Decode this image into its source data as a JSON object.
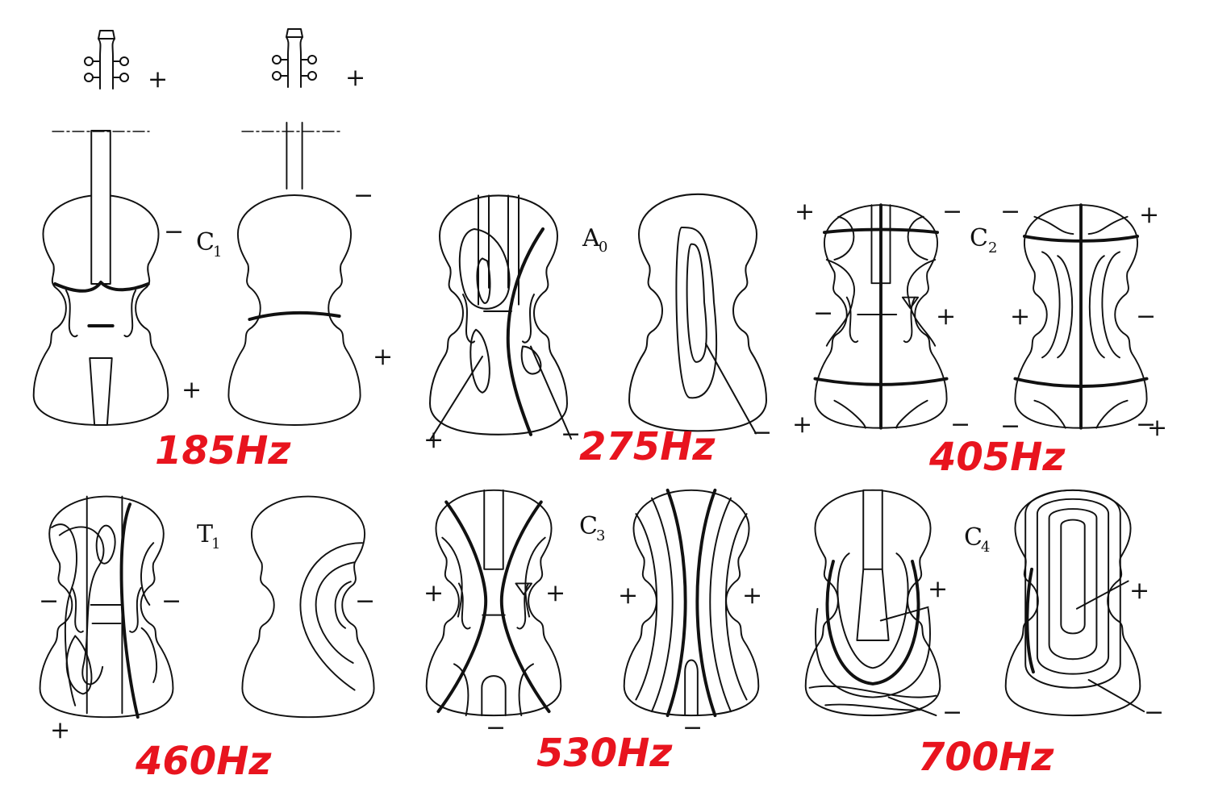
{
  "modes": [
    {
      "id": "c1",
      "label": "C",
      "sub": "1",
      "frequency": "185Hz",
      "signs": [
        "+",
        "−",
        "+",
        "+",
        "−",
        "+"
      ]
    },
    {
      "id": "a0",
      "label": "A",
      "sub": "0",
      "frequency": "275Hz",
      "signs": [
        "+",
        "−",
        "−"
      ]
    },
    {
      "id": "c2",
      "label": "C",
      "sub": "2",
      "frequency": "405Hz",
      "signs": [
        "+",
        "−",
        "+",
        "−",
        "+",
        "−",
        "−",
        "+",
        "+",
        "−",
        "+",
        "−",
        "−",
        "+"
      ]
    },
    {
      "id": "t1",
      "label": "T",
      "sub": "1",
      "frequency": "460Hz",
      "signs": [
        "−",
        "−",
        "+",
        "−"
      ]
    },
    {
      "id": "c3",
      "label": "C",
      "sub": "3",
      "frequency": "530Hz",
      "signs": [
        "+",
        "+",
        "−",
        "+",
        "+",
        "−"
      ]
    },
    {
      "id": "c4",
      "label": "C",
      "sub": "4",
      "frequency": "700Hz",
      "signs": [
        "+",
        "−",
        "+",
        "−"
      ]
    }
  ],
  "colors": {
    "ink": "#111111",
    "frequency": "#e8141e"
  }
}
